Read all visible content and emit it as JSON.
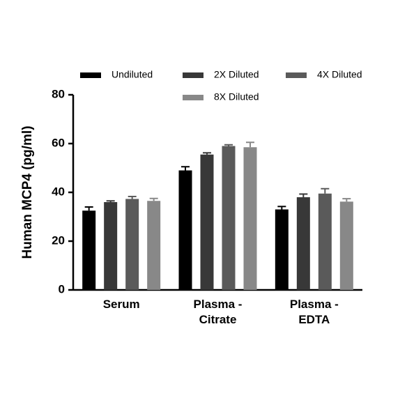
{
  "chart_data": {
    "type": "bar",
    "ylabel": "Human MCP4 (pg/ml)",
    "categories": [
      "Serum",
      "Plasma - Citrate",
      "Plasma - EDTA"
    ],
    "series": [
      {
        "name": "Undiluted",
        "color": "#000000",
        "values": [
          32.5,
          49,
          33
        ],
        "errors": [
          1.5,
          1.5,
          1.2
        ]
      },
      {
        "name": "2X Diluted",
        "color": "#383838",
        "values": [
          36,
          55.5,
          38
        ],
        "errors": [
          0.5,
          0.7,
          1.3
        ]
      },
      {
        "name": "4X Diluted",
        "color": "#5a5a5a",
        "values": [
          37.3,
          59,
          39.5
        ],
        "errors": [
          1,
          0.5,
          2
        ]
      },
      {
        "name": "8X Diluted",
        "color": "#888888",
        "values": [
          36.5,
          58.5,
          36.2
        ],
        "errors": [
          1,
          2,
          1.2
        ]
      }
    ],
    "ylim": [
      0,
      80
    ],
    "yticks": [
      0,
      20,
      40,
      60,
      80
    ]
  }
}
